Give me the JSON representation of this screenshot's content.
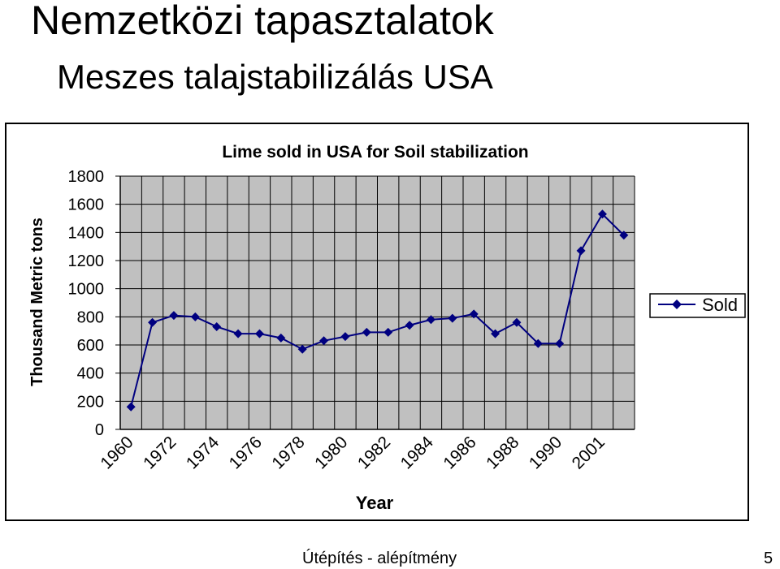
{
  "slide": {
    "title": "Nemzetközi tapasztalatok",
    "subtitle": "Meszes talajstabilizálás USA",
    "footer": "Útépítés - alépítmény",
    "page_number": "5"
  },
  "chart_data": {
    "type": "line",
    "title": "Lime sold in USA for Soil stabilization",
    "xlabel": "Year",
    "ylabel": "Thousand Metric tons",
    "ylim": [
      0,
      1800
    ],
    "yticks": [
      0,
      200,
      400,
      600,
      800,
      1000,
      1200,
      1400,
      1600,
      1800
    ],
    "xtick_labels": [
      "1960",
      "1972",
      "1974",
      "1976",
      "1978",
      "1980",
      "1982",
      "1984",
      "1986",
      "1988",
      "1990",
      "2001"
    ],
    "grid": true,
    "plot_background": "#c0c0c0",
    "legend": {
      "position": "right",
      "entries": [
        "Sold"
      ]
    },
    "series": [
      {
        "name": "Sold",
        "color": "#000080",
        "marker": "diamond",
        "values": [
          160,
          760,
          810,
          800,
          730,
          680,
          680,
          650,
          570,
          630,
          660,
          690,
          690,
          740,
          780,
          790,
          820,
          680,
          760,
          610,
          610,
          1270,
          1530,
          1380
        ]
      }
    ]
  }
}
